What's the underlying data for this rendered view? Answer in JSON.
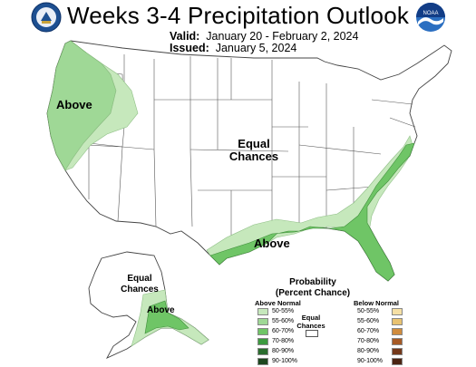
{
  "header": {
    "title": "Weeks 3-4 Precipitation Outlook",
    "valid_label": "Valid:",
    "valid_value": "January 20 - February 2, 2024",
    "issued_label": "Issued:",
    "issued_value": "January 5, 2024",
    "left_logo": "commerce-seal-icon",
    "right_logo": "noaa-logo-icon",
    "right_logo_text": "NOAA"
  },
  "map_labels": {
    "west_above": "Above",
    "center_equal": "Equal Chances",
    "gulf_above": "Above",
    "alaska_equal": "Equal Chances",
    "alaska_above": "Above"
  },
  "legend": {
    "title": "Probability (Percent Chance)",
    "above_header": "Above Normal",
    "below_header": "Below Normal",
    "equal_label": "Equal Chances",
    "above": [
      {
        "label": "50-55%",
        "color": "#c6e8bc"
      },
      {
        "label": "55-60%",
        "color": "#9fd896"
      },
      {
        "label": "60-70%",
        "color": "#6fc566"
      },
      {
        "label": "70-80%",
        "color": "#3c9a3f"
      },
      {
        "label": "80-90%",
        "color": "#2a6d2e"
      },
      {
        "label": "90-100%",
        "color": "#1d471f"
      }
    ],
    "below": [
      {
        "label": "50-55%",
        "color": "#f5dfa4"
      },
      {
        "label": "55-60%",
        "color": "#e8c271"
      },
      {
        "label": "60-70%",
        "color": "#d08c3e"
      },
      {
        "label": "70-80%",
        "color": "#a65a25"
      },
      {
        "label": "80-90%",
        "color": "#74381a"
      },
      {
        "label": "90-100%",
        "color": "#4b2412"
      }
    ]
  }
}
